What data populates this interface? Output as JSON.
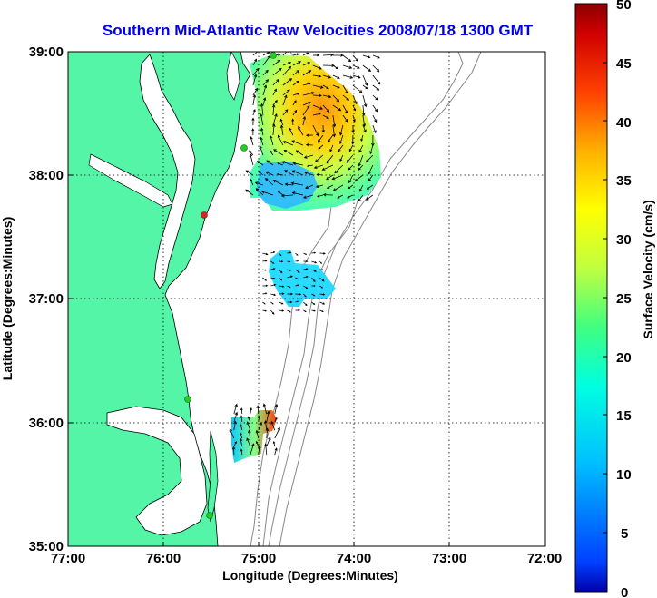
{
  "title": "Southern Mid-Atlantic Raw Velocities 2008/07/18 1300 GMT",
  "xlabel": "Longitude (Degrees:Minutes)",
  "ylabel": "Latitude (Degrees:Minutes)",
  "x_ticks": [
    "77:00",
    "76:00",
    "75:00",
    "74:00",
    "73:00",
    "72:00"
  ],
  "y_ticks": [
    "39:00",
    "38:00",
    "37:00",
    "36:00",
    "35:00"
  ],
  "colorbar": {
    "label": "Surface Velocity (cm/s)",
    "ticks": [
      "50",
      "45",
      "40",
      "35",
      "30",
      "25",
      "20",
      "15",
      "10",
      "5",
      "0"
    ],
    "min": 0,
    "max": 50
  },
  "colors": {
    "land": "#55f5a8",
    "title": "#0000ee",
    "coastline": "#000000",
    "bathymetry": "#888888",
    "station": "#22cc22",
    "station_alert": "#dd2222"
  },
  "chart_data": {
    "type": "map",
    "title": "Southern Mid-Atlantic Raw Velocities 2008/07/18 1300 GMT",
    "xlabel": "Longitude (Degrees:Minutes)",
    "ylabel": "Latitude (Degrees:Minutes)",
    "xlim": [
      -77,
      -72
    ],
    "ylim": [
      35,
      39
    ],
    "grid": true,
    "colorbar_range": [
      0,
      50
    ],
    "colorbar_label": "Surface Velocity (cm/s)",
    "stations": [
      {
        "lon": -74.82,
        "lat": 38.99,
        "status": "ok"
      },
      {
        "lon": -75.15,
        "lat": 38.22,
        "status": "ok"
      },
      {
        "lon": -75.47,
        "lat": 37.62,
        "status": "alert"
      },
      {
        "lon": -75.67,
        "lat": 36.18,
        "status": "ok"
      },
      {
        "lon": -75.53,
        "lat": 35.25,
        "status": "ok"
      }
    ],
    "velocity_regions": [
      {
        "name": "north",
        "lon": [
          -75.1,
          -73.8
        ],
        "lat": [
          37.8,
          39.0
        ],
        "speed_range_cm_s": [
          5,
          45
        ]
      },
      {
        "name": "middle",
        "lon": [
          -75.0,
          -74.3
        ],
        "lat": [
          36.9,
          37.4
        ],
        "speed_range_cm_s": [
          5,
          12
        ]
      },
      {
        "name": "south",
        "lon": [
          -75.3,
          -74.8
        ],
        "lat": [
          35.7,
          36.1
        ],
        "speed_range_cm_s": [
          5,
          45
        ]
      }
    ]
  }
}
